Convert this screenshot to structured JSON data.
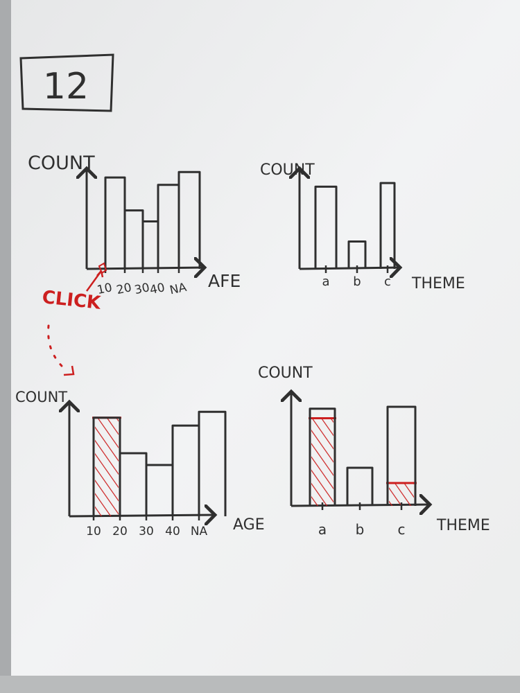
{
  "board_number": "12",
  "annotation": {
    "text": "CLICK",
    "color": "#cc1f1f"
  },
  "colors": {
    "ink": "#2f2f2f",
    "highlight": "#cc1f1f",
    "board": "#f1f2f3"
  },
  "labels": {
    "count": "COUNT",
    "age_top": "AFE",
    "age_bottom": "AGE",
    "theme": "THEME"
  },
  "chart_data": [
    {
      "type": "bar",
      "title": "",
      "xlabel": "AFE",
      "ylabel": "COUNT",
      "categories": [
        "10",
        "20",
        "30",
        "40",
        "NA"
      ],
      "values": [
        5,
        3.2,
        2.6,
        4.6,
        5.3
      ],
      "highlighted": []
    },
    {
      "type": "bar",
      "title": "",
      "xlabel": "THEME",
      "ylabel": "COUNT",
      "categories": [
        "a",
        "b",
        "c"
      ],
      "values": [
        4.5,
        1.5,
        4.7
      ],
      "highlighted": []
    },
    {
      "type": "bar",
      "title": "",
      "xlabel": "AGE",
      "ylabel": "COUNT",
      "categories": [
        "10",
        "20",
        "30",
        "40",
        "NA"
      ],
      "values": [
        5,
        3.2,
        2.6,
        4.6,
        5.3
      ],
      "highlighted": [
        5,
        0,
        0,
        0,
        0
      ]
    },
    {
      "type": "bar",
      "title": "",
      "xlabel": "THEME",
      "ylabel": "COUNT",
      "categories": [
        "a",
        "b",
        "c"
      ],
      "values": [
        5.1,
        2.0,
        5.2
      ],
      "highlighted": [
        4.6,
        0,
        1.2
      ]
    }
  ]
}
